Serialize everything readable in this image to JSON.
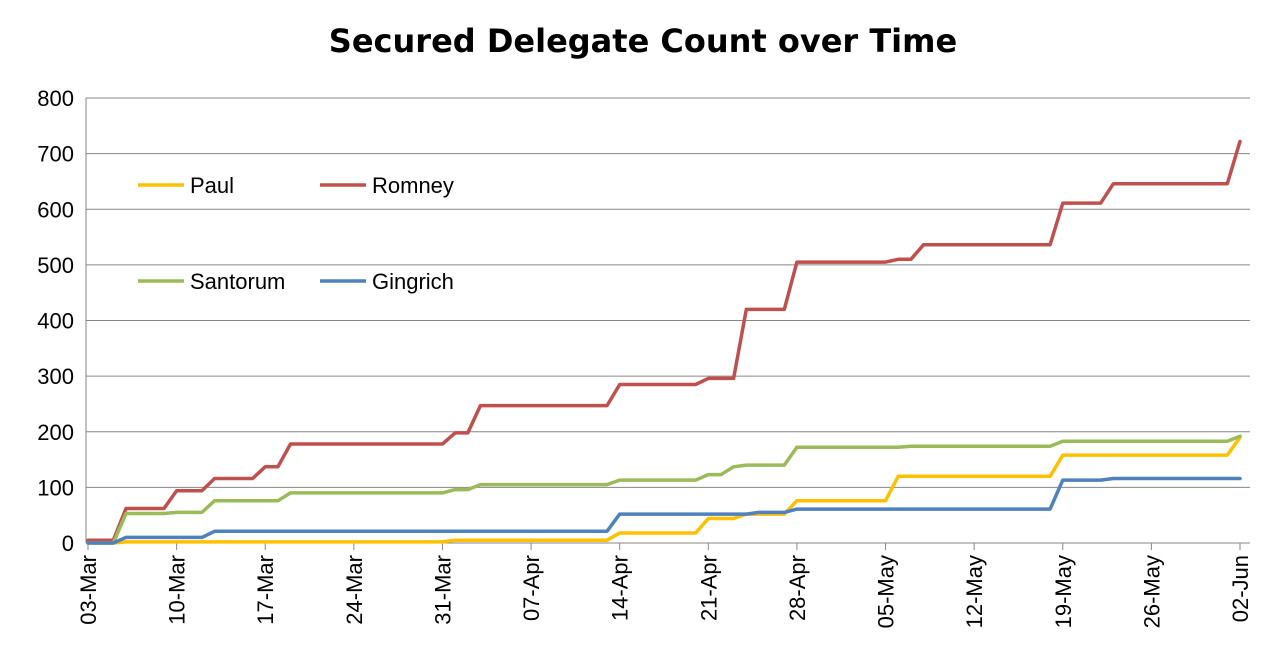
{
  "chart_data": {
    "type": "line",
    "title": "Secured Delegate Count over Time",
    "xlabel": "",
    "ylabel": "",
    "ylim": [
      0,
      800
    ],
    "yticks": [
      "0",
      "100",
      "200",
      "300",
      "400",
      "500",
      "600",
      "700",
      "800"
    ],
    "xticks": [
      "03-Mar",
      "10-Mar",
      "17-Mar",
      "24-Mar",
      "31-Mar",
      "07-Apr",
      "14-Apr",
      "21-Apr",
      "28-Apr",
      "05-May",
      "12-May",
      "19-May",
      "26-May",
      "02-Jun"
    ],
    "x_range": [
      "2012-03-03",
      "2012-06-02"
    ],
    "grid": "horizontal",
    "legend": "top-left",
    "series": [
      {
        "name": "Paul",
        "color": "#ffc000",
        "points": [
          [
            "2012-03-03",
            0
          ],
          [
            "2012-03-05",
            0
          ],
          [
            "2012-03-06",
            2
          ],
          [
            "2012-03-31",
            2
          ],
          [
            "2012-04-01",
            5
          ],
          [
            "2012-04-13",
            5
          ],
          [
            "2012-04-14",
            18
          ],
          [
            "2012-04-20",
            18
          ],
          [
            "2012-04-21",
            44
          ],
          [
            "2012-04-23",
            44
          ],
          [
            "2012-04-24",
            52
          ],
          [
            "2012-04-27",
            52
          ],
          [
            "2012-04-28",
            76
          ],
          [
            "2012-05-05",
            76
          ],
          [
            "2012-05-06",
            120
          ],
          [
            "2012-05-18",
            120
          ],
          [
            "2012-05-19",
            158
          ],
          [
            "2012-06-01",
            158
          ],
          [
            "2012-06-02",
            190
          ]
        ]
      },
      {
        "name": "Romney",
        "color": "#c0504d",
        "points": [
          [
            "2012-03-03",
            5
          ],
          [
            "2012-03-05",
            5
          ],
          [
            "2012-03-06",
            62
          ],
          [
            "2012-03-09",
            62
          ],
          [
            "2012-03-10",
            94
          ],
          [
            "2012-03-12",
            94
          ],
          [
            "2012-03-13",
            116
          ],
          [
            "2012-03-16",
            116
          ],
          [
            "2012-03-17",
            137
          ],
          [
            "2012-03-18",
            137
          ],
          [
            "2012-03-19",
            178
          ],
          [
            "2012-03-31",
            178
          ],
          [
            "2012-04-01",
            198
          ],
          [
            "2012-04-02",
            198
          ],
          [
            "2012-04-03",
            247
          ],
          [
            "2012-04-13",
            247
          ],
          [
            "2012-04-14",
            285
          ],
          [
            "2012-04-20",
            285
          ],
          [
            "2012-04-21",
            296
          ],
          [
            "2012-04-23",
            296
          ],
          [
            "2012-04-24",
            420
          ],
          [
            "2012-04-27",
            420
          ],
          [
            "2012-04-28",
            505
          ],
          [
            "2012-05-05",
            505
          ],
          [
            "2012-05-06",
            510
          ],
          [
            "2012-05-07",
            510
          ],
          [
            "2012-05-08",
            536
          ],
          [
            "2012-05-18",
            536
          ],
          [
            "2012-05-19",
            611
          ],
          [
            "2012-05-22",
            611
          ],
          [
            "2012-05-23",
            646
          ],
          [
            "2012-06-01",
            646
          ],
          [
            "2012-06-02",
            722
          ]
        ]
      },
      {
        "name": "Santorum",
        "color": "#9bbb59",
        "points": [
          [
            "2012-03-03",
            0
          ],
          [
            "2012-03-05",
            0
          ],
          [
            "2012-03-06",
            53
          ],
          [
            "2012-03-09",
            53
          ],
          [
            "2012-03-10",
            55
          ],
          [
            "2012-03-12",
            55
          ],
          [
            "2012-03-13",
            76
          ],
          [
            "2012-03-18",
            76
          ],
          [
            "2012-03-19",
            90
          ],
          [
            "2012-03-31",
            90
          ],
          [
            "2012-04-01",
            96
          ],
          [
            "2012-04-02",
            96
          ],
          [
            "2012-04-03",
            105
          ],
          [
            "2012-04-13",
            105
          ],
          [
            "2012-04-14",
            113
          ],
          [
            "2012-04-20",
            113
          ],
          [
            "2012-04-21",
            123
          ],
          [
            "2012-04-22",
            123
          ],
          [
            "2012-04-23",
            137
          ],
          [
            "2012-04-24",
            140
          ],
          [
            "2012-04-27",
            140
          ],
          [
            "2012-04-28",
            172
          ],
          [
            "2012-05-06",
            172
          ],
          [
            "2012-05-07",
            174
          ],
          [
            "2012-05-18",
            174
          ],
          [
            "2012-05-19",
            183
          ],
          [
            "2012-06-01",
            183
          ],
          [
            "2012-06-02",
            192
          ]
        ]
      },
      {
        "name": "Gingrich",
        "color": "#4f81bd",
        "points": [
          [
            "2012-03-03",
            0
          ],
          [
            "2012-03-05",
            0
          ],
          [
            "2012-03-06",
            10
          ],
          [
            "2012-03-12",
            10
          ],
          [
            "2012-03-13",
            21
          ],
          [
            "2012-04-13",
            21
          ],
          [
            "2012-04-14",
            52
          ],
          [
            "2012-04-24",
            52
          ],
          [
            "2012-04-25",
            55
          ],
          [
            "2012-04-27",
            55
          ],
          [
            "2012-04-28",
            61
          ],
          [
            "2012-05-18",
            61
          ],
          [
            "2012-05-19",
            113
          ],
          [
            "2012-05-22",
            113
          ],
          [
            "2012-05-23",
            116
          ],
          [
            "2012-06-02",
            116
          ]
        ]
      }
    ]
  }
}
